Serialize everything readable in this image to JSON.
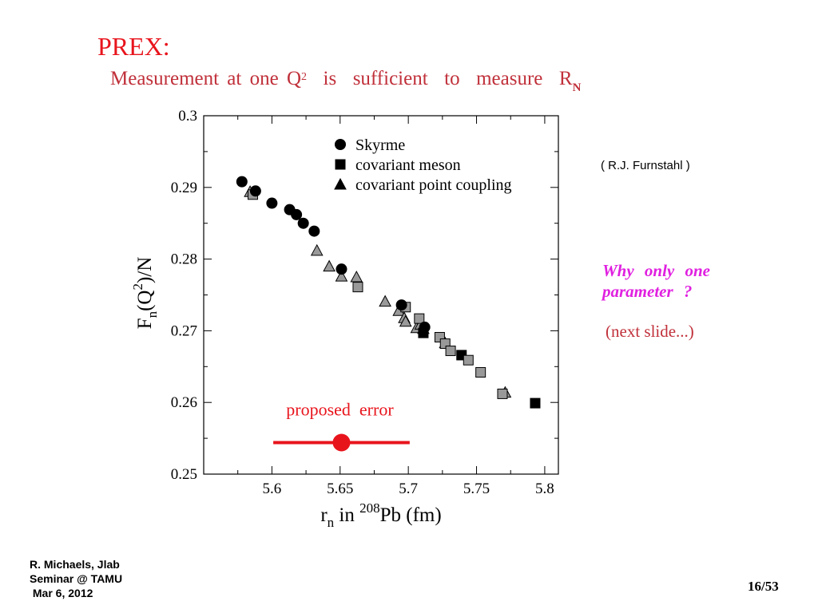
{
  "slide": {
    "title": "PREX:",
    "subtitle_main": "Measurement  at  one  Q",
    "subtitle_sup": "2",
    "subtitle_tail": "  is  sufficient  to  measure  R",
    "subtitle_sub": "N",
    "credit": "( R.J.  Furnstahl )",
    "why_line1": "Why  only  one",
    "why_line2": "parameter  ?",
    "next_slide": "(next slide...)",
    "footer": [
      "R. Michaels,  Jlab",
      "Seminar @ TAMU",
      " Mar 6, 2012"
    ],
    "page_number": "16/53"
  },
  "colors": {
    "title": "#e8141c",
    "subtitle": "#c0303a",
    "why": "#e020e0",
    "error_bar": "#e8141c",
    "covariant_fill": "#999999"
  },
  "chart_data": {
    "type": "scatter",
    "xlim": [
      5.55,
      5.81
    ],
    "ylim": [
      0.25,
      0.3
    ],
    "x_ticks": [
      "5.6",
      "5.65",
      "5.7",
      "5.75",
      "5.8"
    ],
    "y_ticks": [
      "0.25",
      "0.26",
      "0.27",
      "0.28",
      "0.29",
      "0.3"
    ],
    "xlabel": {
      "main": "r",
      "sub": "n",
      "mid": " in ",
      "sup": "208",
      "tail": "Pb (fm)"
    },
    "ylabel": {
      "main": "F",
      "sub": "n",
      "mid": "(Q",
      "sup": "2",
      "tail": ")/N"
    },
    "legend": {
      "position": "top-right",
      "entries": [
        {
          "marker": "circle",
          "label": "Skyrme"
        },
        {
          "marker": "square",
          "label": "covariant meson"
        },
        {
          "marker": "triangle",
          "label": "covariant point coupling"
        }
      ]
    },
    "series": [
      {
        "name": "Skyrme",
        "marker": "circle",
        "points": [
          [
            5.578,
            0.2908
          ],
          [
            5.588,
            0.2895
          ],
          [
            5.6,
            0.2878
          ],
          [
            5.613,
            0.2869
          ],
          [
            5.618,
            0.2862
          ],
          [
            5.623,
            0.285
          ],
          [
            5.631,
            0.2839
          ],
          [
            5.651,
            0.2786
          ],
          [
            5.695,
            0.2736
          ],
          [
            5.712,
            0.2705
          ]
        ]
      },
      {
        "name": "covariant meson",
        "marker": "square",
        "points": [
          [
            5.586,
            0.289
          ],
          [
            5.663,
            0.2761
          ],
          [
            5.698,
            0.2733
          ],
          [
            5.708,
            0.2717
          ],
          [
            5.711,
            0.2697
          ],
          [
            5.723,
            0.2691
          ],
          [
            5.727,
            0.2682
          ],
          [
            5.731,
            0.2672
          ],
          [
            5.739,
            0.2666
          ],
          [
            5.744,
            0.2659
          ],
          [
            5.753,
            0.2642
          ],
          [
            5.769,
            0.2612
          ],
          [
            5.793,
            0.2599
          ]
        ]
      },
      {
        "name": "covariant point coupling",
        "marker": "triangle",
        "points": [
          [
            5.584,
            0.2894
          ],
          [
            5.633,
            0.2812
          ],
          [
            5.642,
            0.279
          ],
          [
            5.651,
            0.2776
          ],
          [
            5.662,
            0.2775
          ],
          [
            5.683,
            0.2741
          ],
          [
            5.693,
            0.2728
          ],
          [
            5.697,
            0.2718
          ],
          [
            5.698,
            0.2713
          ],
          [
            5.706,
            0.2704
          ],
          [
            5.709,
            0.2709
          ],
          [
            5.711,
            0.2703
          ],
          [
            5.727,
            0.2683
          ],
          [
            5.771,
            0.2614
          ]
        ]
      }
    ],
    "proposed_error": {
      "label": "proposed  error",
      "center": 5.651,
      "low": 5.601,
      "high": 5.701,
      "y": 0.2544
    }
  }
}
